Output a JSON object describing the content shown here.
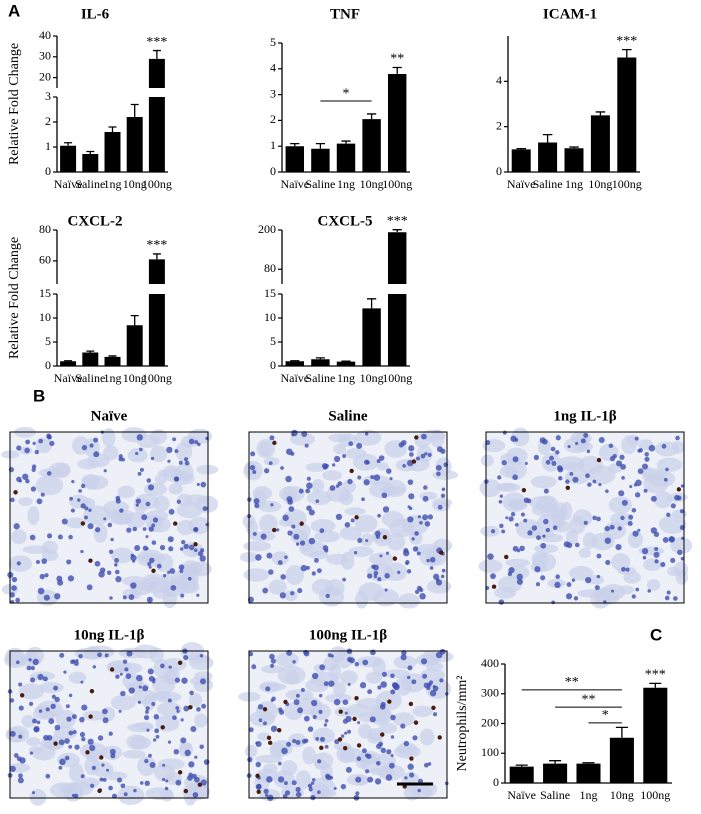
{
  "panel_labels": [
    "A",
    "B",
    "C"
  ],
  "micrographs": [
    {
      "title": "Naïve"
    },
    {
      "title": "Saline"
    },
    {
      "title": "1ng IL-1β"
    },
    {
      "title": "10ng IL-1β"
    },
    {
      "title": "100ng IL-1β"
    }
  ],
  "chart_data": [
    {
      "type": "bar",
      "title": "IL-6",
      "ylabel": "Relative Fold Change",
      "categories": [
        "Naïve",
        "Saline",
        "1ng",
        "10ng",
        "100ng"
      ],
      "values": [
        1.05,
        0.72,
        1.6,
        2.2,
        29
      ],
      "error": [
        0.12,
        0.1,
        0.2,
        0.5,
        4
      ],
      "color": "#000000",
      "ysegments": [
        {
          "ylim": [
            0,
            3
          ],
          "yticks": [
            0,
            1,
            2,
            3
          ]
        },
        {
          "ylim": [
            15,
            40
          ],
          "yticks": [
            20,
            30,
            40
          ]
        }
      ],
      "annotations": [
        {
          "text": "***",
          "category": "100ng"
        }
      ]
    },
    {
      "type": "bar",
      "title": "TNF",
      "categories": [
        "Naïve",
        "Saline",
        "1ng",
        "10ng",
        "100ng"
      ],
      "values": [
        1.0,
        0.9,
        1.1,
        2.05,
        3.8
      ],
      "error": [
        0.1,
        0.2,
        0.1,
        0.2,
        0.25
      ],
      "color": "#000000",
      "ylim": [
        0,
        5
      ],
      "yticks": [
        0,
        1,
        2,
        3,
        4,
        5
      ],
      "annotations": [
        {
          "text": "**",
          "category": "100ng"
        }
      ],
      "brackets": [
        {
          "text": "*",
          "from": "Saline",
          "to": "10ng",
          "y": 2.75
        }
      ]
    },
    {
      "type": "bar",
      "title": "ICAM-1",
      "categories": [
        "Naïve",
        "Saline",
        "1ng",
        "10ng",
        "100ng"
      ],
      "values": [
        1.0,
        1.3,
        1.05,
        2.5,
        5.05
      ],
      "error": [
        0.03,
        0.35,
        0.05,
        0.15,
        0.35
      ],
      "color": "#000000",
      "ylim": [
        0,
        6
      ],
      "yticks": [
        0,
        2,
        4
      ],
      "annotations": [
        {
          "text": "***",
          "category": "100ng"
        }
      ]
    },
    {
      "type": "bar",
      "title": "CXCL-2",
      "ylabel": "Relative Fold Change",
      "categories": [
        "Naïve",
        "Saline",
        "1ng",
        "10ng",
        "100ng"
      ],
      "values": [
        1.0,
        2.8,
        1.9,
        8.5,
        61
      ],
      "error": [
        0.1,
        0.3,
        0.2,
        2,
        3.5
      ],
      "color": "#000000",
      "ysegments": [
        {
          "ylim": [
            0,
            15
          ],
          "yticks": [
            0,
            5,
            10,
            15
          ]
        },
        {
          "ylim": [
            45,
            80
          ],
          "yticks": [
            60,
            80
          ]
        }
      ],
      "annotations": [
        {
          "text": "***",
          "category": "100ng"
        }
      ]
    },
    {
      "type": "bar",
      "title": "CXCL-5",
      "categories": [
        "Naïve",
        "Saline",
        "1ng",
        "10ng",
        "100ng"
      ],
      "values": [
        1.0,
        1.4,
        0.9,
        12,
        193
      ],
      "error": [
        0.1,
        0.3,
        0.1,
        2,
        8
      ],
      "color": "#000000",
      "ysegments": [
        {
          "ylim": [
            0,
            15
          ],
          "yticks": [
            0,
            5,
            10,
            15
          ]
        },
        {
          "ylim": [
            35,
            200
          ],
          "yticks": [
            80,
            200
          ]
        }
      ],
      "annotations": [
        {
          "text": "***",
          "category": "100ng"
        }
      ]
    },
    {
      "type": "bar",
      "ylabel": "Neutrophils/mm²",
      "categories": [
        "Naïve",
        "Saline",
        "1ng",
        "10ng",
        "100ng"
      ],
      "values": [
        55,
        65,
        65,
        152,
        320
      ],
      "error": [
        5,
        10,
        3,
        35,
        15
      ],
      "color": "#000000",
      "ylim": [
        0,
        400
      ],
      "yticks": [
        0,
        100,
        200,
        300,
        400
      ],
      "annotations": [
        {
          "text": "***",
          "category": "100ng"
        }
      ],
      "brackets": [
        {
          "text": "**",
          "from": "Naïve",
          "to": "10ng",
          "y": 313
        },
        {
          "text": "**",
          "from": "Saline",
          "to": "10ng",
          "y": 255
        },
        {
          "text": "*",
          "from": "1ng",
          "to": "10ng",
          "y": 202
        }
      ]
    }
  ]
}
